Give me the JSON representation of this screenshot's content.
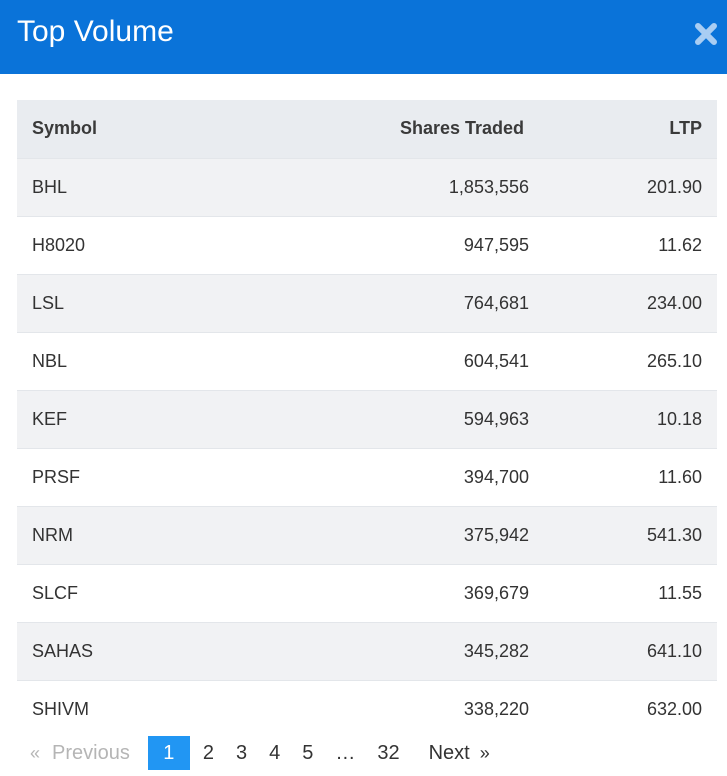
{
  "header": {
    "title": "Top Volume",
    "close_icon": "close-icon"
  },
  "table": {
    "columns": [
      "Symbol",
      "Shares Traded",
      "LTP"
    ],
    "rows": [
      {
        "symbol": "BHL",
        "shares": "1,853,556",
        "ltp": "201.90"
      },
      {
        "symbol": "H8020",
        "shares": "947,595",
        "ltp": "11.62"
      },
      {
        "symbol": "LSL",
        "shares": "764,681",
        "ltp": "234.00"
      },
      {
        "symbol": "NBL",
        "shares": "604,541",
        "ltp": "265.10"
      },
      {
        "symbol": "KEF",
        "shares": "594,963",
        "ltp": "10.18"
      },
      {
        "symbol": "PRSF",
        "shares": "394,700",
        "ltp": "11.60"
      },
      {
        "symbol": "NRM",
        "shares": "375,942",
        "ltp": "541.30"
      },
      {
        "symbol": "SLCF",
        "shares": "369,679",
        "ltp": "11.55"
      },
      {
        "symbol": "SAHAS",
        "shares": "345,282",
        "ltp": "641.10"
      },
      {
        "symbol": "SHIVM",
        "shares": "338,220",
        "ltp": "632.00"
      }
    ]
  },
  "pagination": {
    "prev_arrow": "«",
    "prev_label": "Previous",
    "pages": [
      "1",
      "2",
      "3",
      "4",
      "5",
      "…",
      "32"
    ],
    "active": "1",
    "next_label": "Next",
    "next_arrow": "»"
  },
  "colors": {
    "header_bg": "#0a73d9",
    "active_page": "#2196f3"
  }
}
